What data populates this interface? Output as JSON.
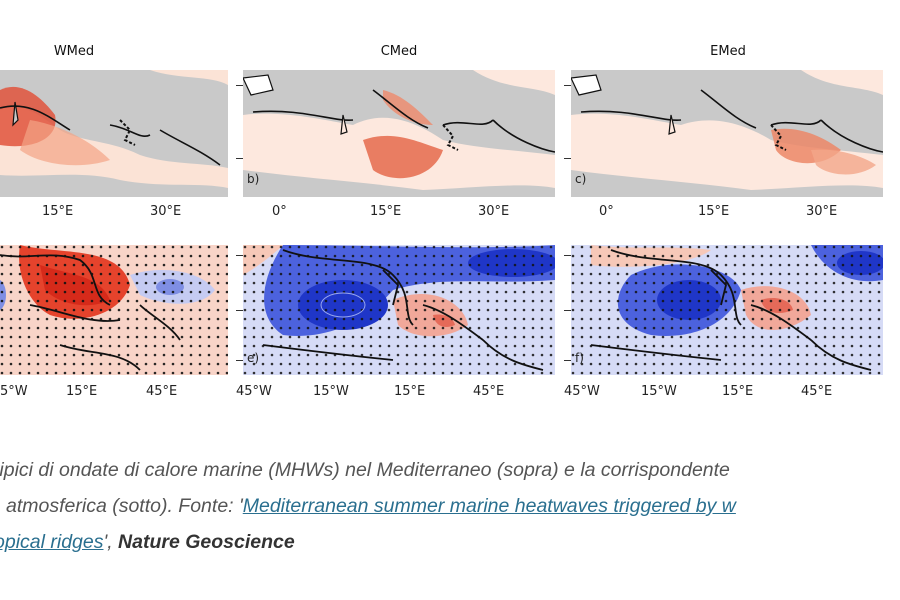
{
  "top_panels": {
    "titles": [
      "WMed",
      "CMed",
      "EMed"
    ],
    "tags": [
      "b)",
      "c)"
    ],
    "xticks_a": [
      "15°E",
      "30°E"
    ],
    "xticks": [
      "0°",
      "15°E",
      "30°E"
    ]
  },
  "bottom_panels": {
    "tags": [
      "e)",
      "f)"
    ],
    "xticks_d": [
      "5°W",
      "15°E",
      "45°E"
    ],
    "xticks": [
      "45°W",
      "15°W",
      "15°E",
      "45°E"
    ]
  },
  "caption": {
    "line1": "tipici di ondate di calore marine (MHWs) nel Mediterraneo (sopra) e la corrispondente",
    "line2_prefix": "atmosferica (sotto). Fonte: '",
    "link_part1": "Mediterranean summer marine heatwaves triggered by w",
    "link_part2": "opical ridges",
    "line3_suffix": "', ",
    "journal": "Nature Geoscience"
  },
  "colors": {
    "heat_strong": "#d7301f",
    "heat_light": "#fde0d2",
    "cold_strong": "#1f3fd1",
    "cold_light": "#c9d0f3",
    "land_gray": "#c9c9c9",
    "link": "#2a6f8f"
  }
}
